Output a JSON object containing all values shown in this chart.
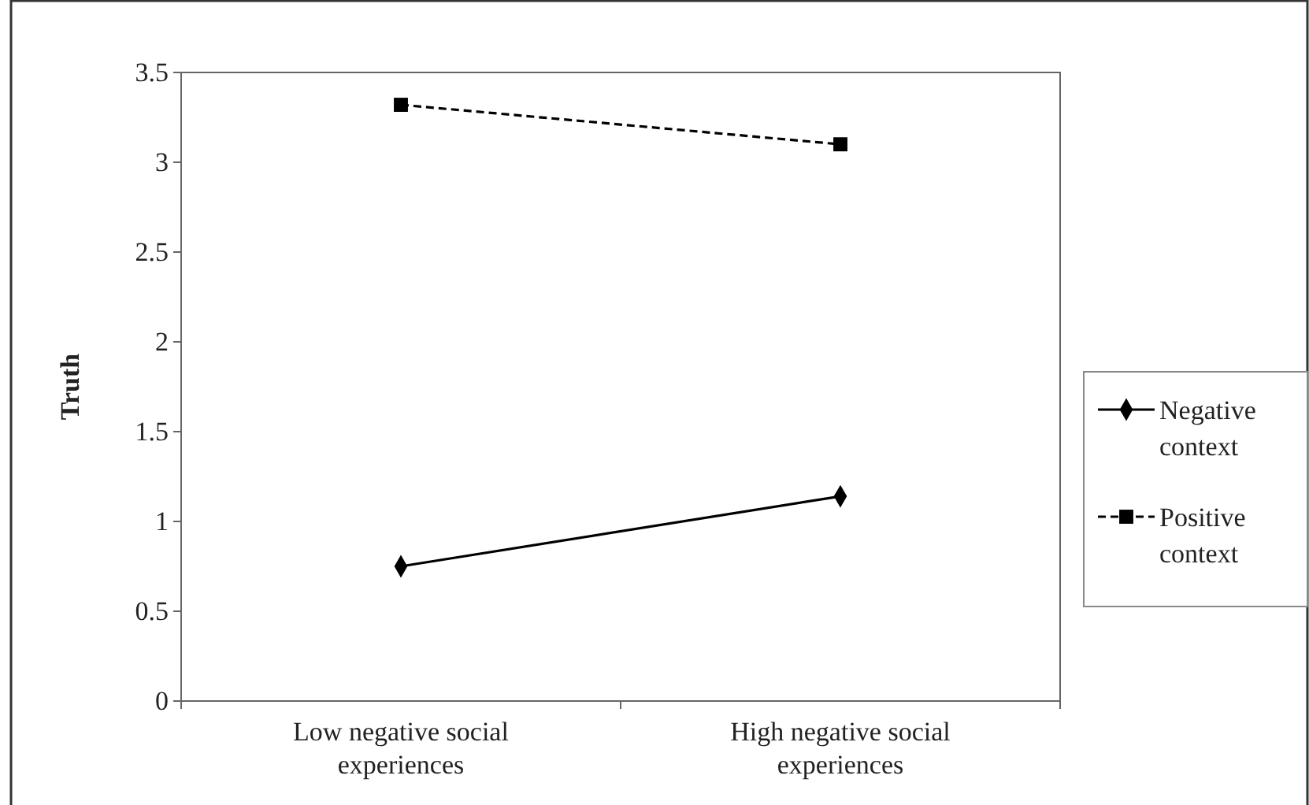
{
  "chart_data": {
    "type": "line",
    "ylabel": "Truth",
    "categories": [
      "Low negative social experiences",
      "High negative social experiences"
    ],
    "series": [
      {
        "name": "Negative context",
        "color": "#000000",
        "values": [
          0.75,
          1.14
        ],
        "marker": "diamond",
        "line_style": "solid"
      },
      {
        "name": "Positive context",
        "color": "#000000",
        "values": [
          3.32,
          3.1
        ],
        "marker": "square",
        "line_style": "dashed"
      }
    ],
    "ylim": [
      0,
      3.5
    ],
    "yticks": [
      0,
      0.5,
      1,
      1.5,
      2,
      2.5,
      3,
      3.5
    ],
    "grid": false,
    "legend": "right"
  }
}
